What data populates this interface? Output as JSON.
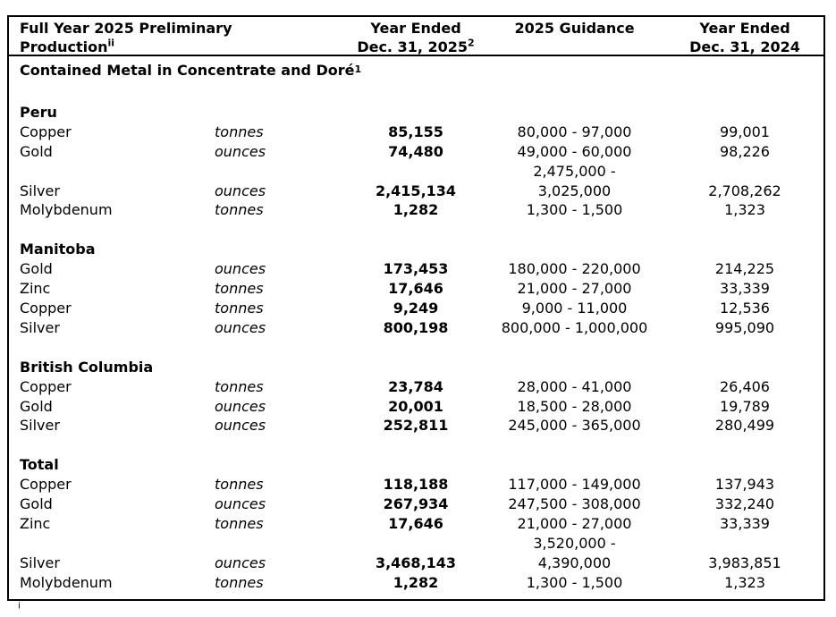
{
  "colors": {
    "text": "#000000",
    "border": "#000000",
    "background": "#ffffff"
  },
  "table": {
    "header": {
      "col1_line1": "Full Year 2025 Preliminary",
      "col1_line2": "Production",
      "col1_sup": "ii",
      "col2_line1": "Year Ended",
      "col2_line2": "Dec. 31, 2025",
      "col2_sup": "2",
      "col3": "2025 Guidance",
      "col4_line1": "Year Ended",
      "col4_line2": "Dec. 31, 2024"
    },
    "subheader": {
      "text": "Contained Metal in Concentrate and Doré",
      "sup": "1"
    },
    "sections": [
      {
        "name": "Peru",
        "rows": [
          {
            "metal": "Copper",
            "unit": "tonnes",
            "actual_2025": "85,155",
            "guidance": "80,000 - 97,000",
            "actual_2024": "99,001"
          },
          {
            "metal": "Gold",
            "unit": "ounces",
            "actual_2025": "74,480",
            "guidance": "49,000 - 60,000",
            "actual_2024": "98,226"
          },
          {
            "metal": "Silver",
            "unit": "ounces",
            "actual_2025": "2,415,134",
            "guidance_line1": "2,475,000 -",
            "guidance_line2": "3,025,000",
            "actual_2024": "2,708,262"
          },
          {
            "metal": "Molybdenum",
            "unit": "tonnes",
            "actual_2025": "1,282",
            "guidance": "1,300 - 1,500",
            "actual_2024": "1,323"
          }
        ]
      },
      {
        "name": "Manitoba",
        "rows": [
          {
            "metal": "Gold",
            "unit": "ounces",
            "actual_2025": "173,453",
            "guidance": "180,000 - 220,000",
            "actual_2024": "214,225"
          },
          {
            "metal": "Zinc",
            "unit": "tonnes",
            "actual_2025": "17,646",
            "guidance": "21,000 - 27,000",
            "actual_2024": "33,339"
          },
          {
            "metal": "Copper",
            "unit": "tonnes",
            "actual_2025": "9,249",
            "guidance": "9,000 - 11,000",
            "actual_2024": "12,536"
          },
          {
            "metal": "Silver",
            "unit": "ounces",
            "actual_2025": "800,198",
            "guidance": "800,000 - 1,000,000",
            "actual_2024": "995,090"
          }
        ]
      },
      {
        "name": "British Columbia",
        "rows": [
          {
            "metal": "Copper",
            "unit": "tonnes",
            "actual_2025": "23,784",
            "guidance": "28,000 - 41,000",
            "actual_2024": "26,406"
          },
          {
            "metal": "Gold",
            "unit": "ounces",
            "actual_2025": "20,001",
            "guidance": "18,500 - 28,000",
            "actual_2024": "19,789"
          },
          {
            "metal": "Silver",
            "unit": "ounces",
            "actual_2025": "252,811",
            "guidance": "245,000 - 365,000",
            "actual_2024": "280,499"
          }
        ]
      },
      {
        "name": "Total",
        "rows": [
          {
            "metal": "Copper",
            "unit": "tonnes",
            "actual_2025": "118,188",
            "guidance": "117,000 - 149,000",
            "actual_2024": "137,943"
          },
          {
            "metal": "Gold",
            "unit": "ounces",
            "actual_2025": "267,934",
            "guidance": "247,500 - 308,000",
            "actual_2024": "332,240"
          },
          {
            "metal": "Zinc",
            "unit": "tonnes",
            "actual_2025": "17,646",
            "guidance": "21,000 - 27,000",
            "actual_2024": "33,339"
          },
          {
            "metal": "Silver",
            "unit": "ounces",
            "actual_2025": "3,468,143",
            "guidance_line1": "3,520,000 -",
            "guidance_line2": "4,390,000",
            "actual_2024": "3,983,851"
          },
          {
            "metal": "Molybdenum",
            "unit": "tonnes",
            "actual_2025": "1,282",
            "guidance": "1,300 - 1,500",
            "actual_2024": "1,323"
          }
        ]
      }
    ],
    "footnote_marker": "i"
  }
}
